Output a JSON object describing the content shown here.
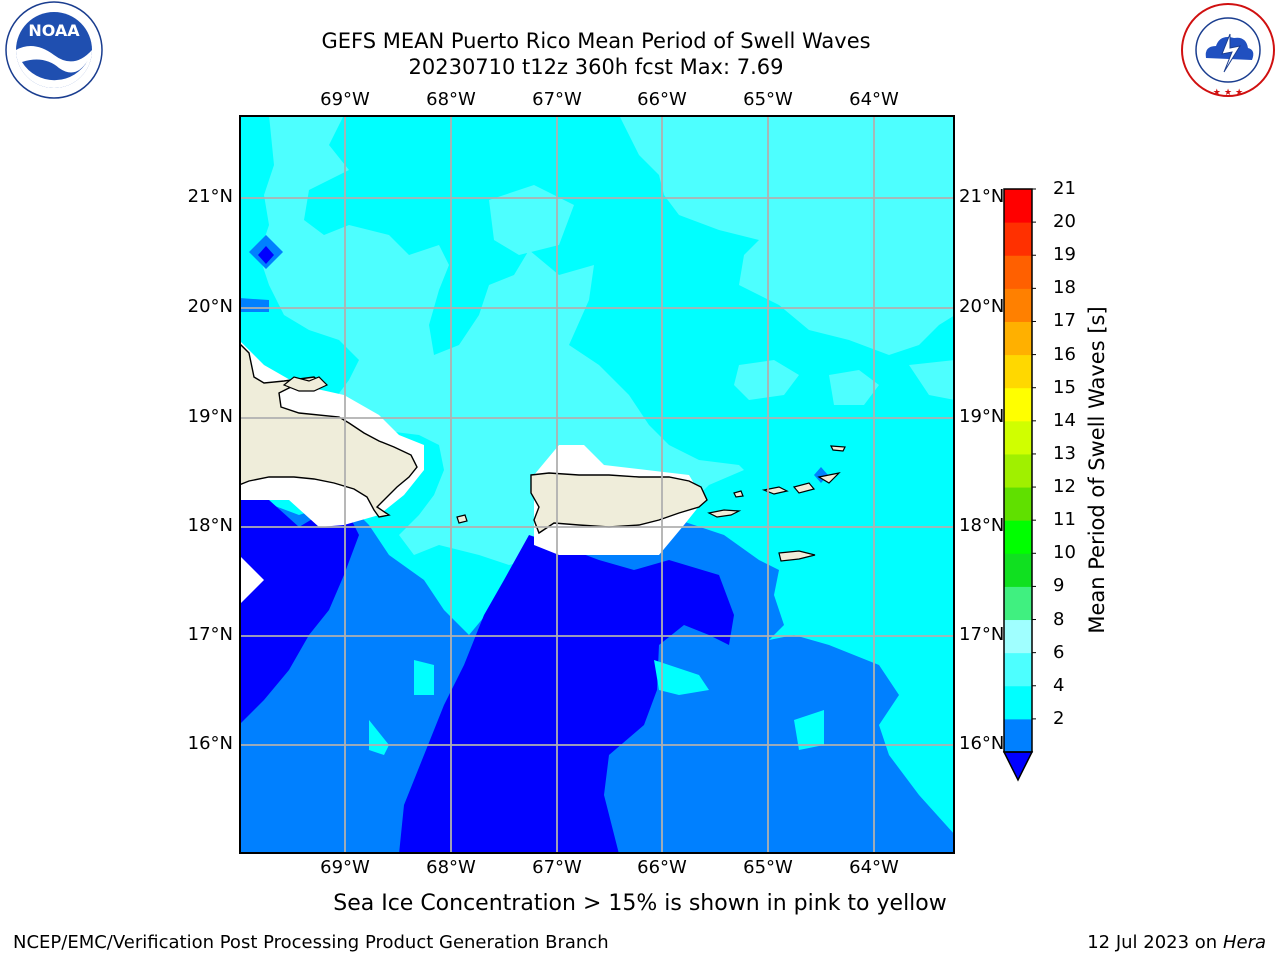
{
  "title": {
    "line1": "GEFS MEAN Puerto Rico Mean Period of Swell Waves",
    "line2": "20230710 t12z 360h fcst   Max: 7.69"
  },
  "logos": {
    "left": {
      "name": "noaa-logo",
      "text": "NOAA"
    },
    "right": {
      "name": "national-weather-service-logo",
      "text": "NATIONAL WEATHER SERVICE"
    }
  },
  "map": {
    "longitude_labels": [
      "69°W",
      "68°W",
      "67°W",
      "66°W",
      "65°W",
      "64°W"
    ],
    "latitude_labels": [
      "21°N",
      "20°N",
      "19°N",
      "18°N",
      "17°N",
      "16°N"
    ],
    "colors": {
      "period_2_4": "#0000ff",
      "period_4_6": "#0080ff",
      "period_6_8": "#00ffff",
      "period_8_9": "#4dffff",
      "land": "#efedda"
    }
  },
  "colorbar": {
    "title": "Mean Period of Swell Waves [s]",
    "ticks": [
      "21",
      "20",
      "19",
      "18",
      "17",
      "16",
      "15",
      "14",
      "13",
      "12",
      "11",
      "10",
      "9",
      "8",
      "6",
      "4",
      "2"
    ],
    "colors_bottom_to_top": [
      "#0080ff",
      "#00ffff",
      "#4dffff",
      "#a0ffff",
      "#40f080",
      "#10e020",
      "#00ff00",
      "#60e000",
      "#a0f000",
      "#d0ff00",
      "#ffff00",
      "#ffd800",
      "#ffb000",
      "#ff8000",
      "#ff6000",
      "#ff3000",
      "#ff0000"
    ],
    "extend_color": "#0000ff"
  },
  "note": "Sea Ice Concentration > 15% is shown in pink to yellow",
  "footer": {
    "left": "NCEP/EMC/Verification Post Processing Product Generation Branch",
    "date": "12 Jul 2023 on",
    "machine": "Hera"
  }
}
